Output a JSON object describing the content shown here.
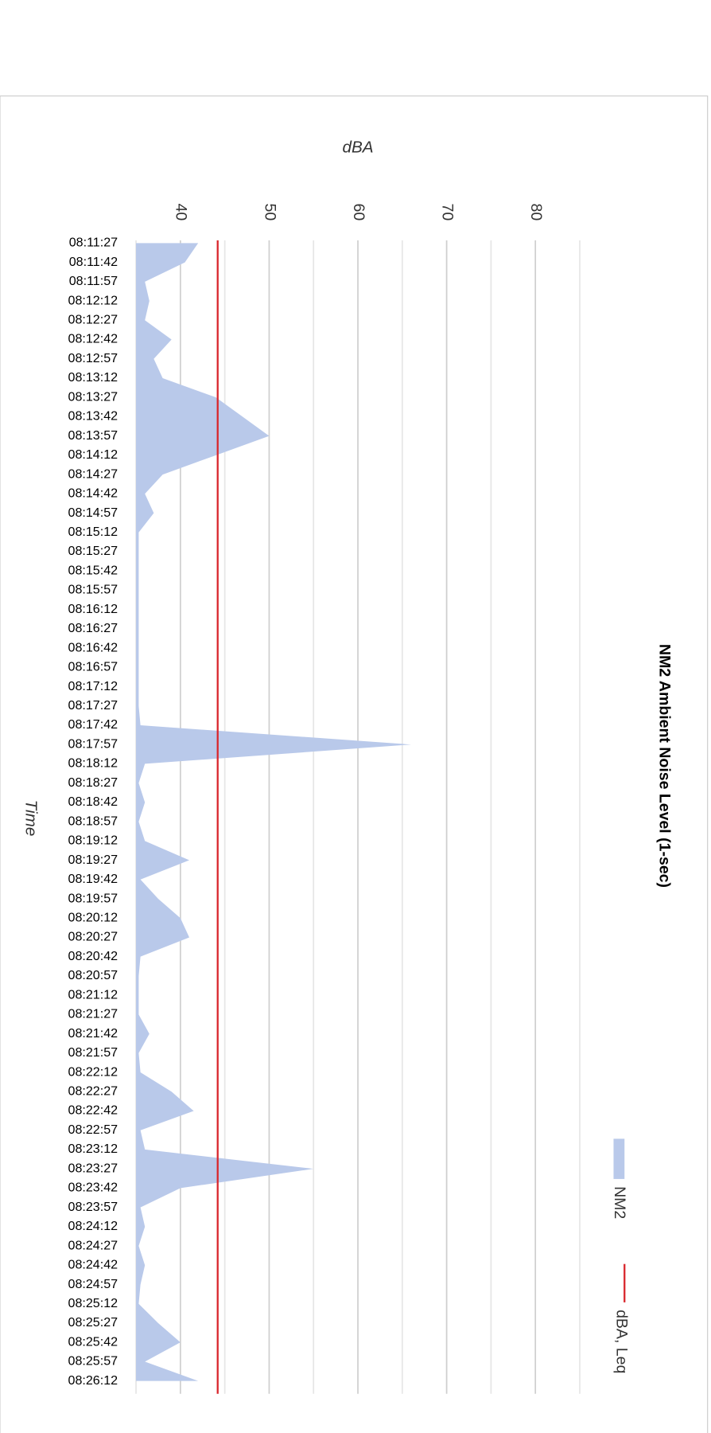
{
  "chart_data": {
    "type": "area",
    "orientation": "horizontal",
    "title": "NM2 Ambient Noise Level (1-sec)",
    "x_label": "Time",
    "y_label": "dBA",
    "categories": [
      "08:11:27",
      "08:11:42",
      "08:11:57",
      "08:12:12",
      "08:12:27",
      "08:12:42",
      "08:12:57",
      "08:13:12",
      "08:13:27",
      "08:13:42",
      "08:13:57",
      "08:14:12",
      "08:14:27",
      "08:14:42",
      "08:14:57",
      "08:15:12",
      "08:15:27",
      "08:15:42",
      "08:15:57",
      "08:16:12",
      "08:16:27",
      "08:16:42",
      "08:16:57",
      "08:17:12",
      "08:17:27",
      "08:17:42",
      "08:17:57",
      "08:18:12",
      "08:18:27",
      "08:18:42",
      "08:18:57",
      "08:19:12",
      "08:19:27",
      "08:19:42",
      "08:19:57",
      "08:20:12",
      "08:20:27",
      "08:20:42",
      "08:20:57",
      "08:21:12",
      "08:21:27",
      "08:21:42",
      "08:21:57",
      "08:22:12",
      "08:22:27",
      "08:22:42",
      "08:22:57",
      "08:23:12",
      "08:23:27",
      "08:23:42",
      "08:23:57",
      "08:24:12",
      "08:24:27",
      "08:24:42",
      "08:24:57",
      "08:25:12",
      "08:25:27",
      "08:25:42",
      "08:25:57",
      "08:26:12"
    ],
    "series": [
      {
        "name": "NM2",
        "color": "#b9c9ea",
        "values": [
          42,
          40.5,
          36,
          36.5,
          36,
          39,
          37,
          38,
          44,
          47,
          50,
          44,
          38,
          36,
          37,
          35.3,
          35.3,
          35.3,
          35.3,
          35.3,
          35.3,
          35.3,
          35.3,
          35.3,
          35.3,
          35.5,
          66,
          36,
          35.3,
          36,
          35.3,
          36,
          41,
          35.5,
          37.5,
          40,
          41,
          35.5,
          35.3,
          35.3,
          35.3,
          36.5,
          35.3,
          35.5,
          39,
          41.5,
          35.5,
          36,
          55,
          40,
          35.5,
          36,
          35.3,
          36,
          35.5,
          35.3,
          37.5,
          40,
          36,
          42
        ]
      },
      {
        "name": "dBA, Leq",
        "color": "#d9262c",
        "value": 44.2
      }
    ],
    "ylim": [
      35,
      85
    ],
    "yticks": [
      40,
      50,
      60,
      70,
      80
    ],
    "minor_gridlines": [
      35,
      45,
      55,
      65,
      75,
      85
    ],
    "grid": true,
    "legend": "right"
  }
}
